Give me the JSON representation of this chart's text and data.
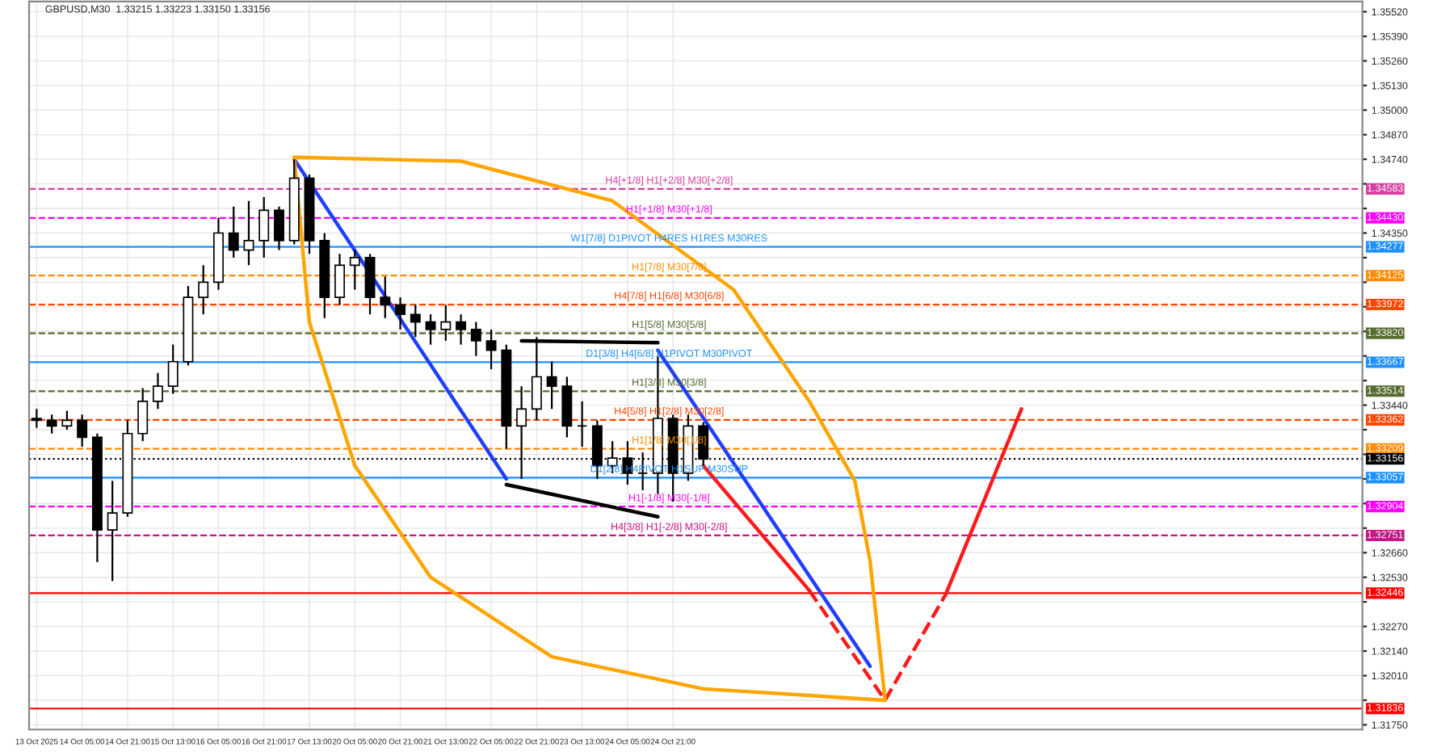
{
  "chart_data": {
    "type": "candlestick",
    "title": "GBPUSD,M30  1.33215 1.33223 1.33150 1.33156",
    "categories": [
      "13 Oct 2025",
      null,
      null,
      "14 Oct 05:00",
      null,
      null,
      "14 Oct 21:00",
      null,
      null,
      "15 Oct 13:00",
      null,
      null,
      "16 Oct 05:00",
      null,
      null,
      "16 Oct 21:00",
      null,
      null,
      "17 Oct 13:00",
      null,
      null,
      "20 Oct 05:00",
      null,
      null,
      "20 Oct 21:00",
      null,
      null,
      "21 Oct 13:00",
      null,
      null,
      "22 Oct 05:00",
      null,
      null,
      "22 Oct 21:00",
      null,
      null,
      "23 Oct 13:00",
      null,
      null,
      "24 Oct 05:00",
      null,
      null,
      "24 Oct 21:00",
      null,
      null,
      null,
      null,
      null,
      null,
      null,
      null,
      null,
      null,
      null,
      null,
      null,
      null,
      null,
      null,
      null,
      null,
      null,
      null,
      null,
      null,
      null,
      null,
      null,
      null,
      null,
      null,
      null,
      null,
      null,
      null,
      null,
      null,
      null,
      null,
      null,
      null,
      null,
      null,
      null,
      null,
      null,
      null,
      null
    ],
    "ohlc": [
      [
        1.3337,
        1.3342,
        1.3332,
        1.3336
      ],
      [
        1.3336,
        1.3339,
        1.3329,
        1.3333
      ],
      [
        1.3333,
        1.3341,
        1.3331,
        1.3336
      ],
      [
        1.3336,
        1.3339,
        1.3322,
        1.3327
      ],
      [
        1.3327,
        1.3329,
        1.3261,
        1.3278
      ],
      [
        1.3278,
        1.3304,
        1.3251,
        1.3287
      ],
      [
        1.3287,
        1.3336,
        1.3285,
        1.3329
      ],
      [
        1.3329,
        1.3353,
        1.3325,
        1.3346
      ],
      [
        1.3346,
        1.3361,
        1.3342,
        1.3354
      ],
      [
        1.3354,
        1.3376,
        1.335,
        1.3367
      ],
      [
        1.3367,
        1.3407,
        1.3365,
        1.3401
      ],
      [
        1.3401,
        1.3418,
        1.3392,
        1.3409
      ],
      [
        1.3409,
        1.3443,
        1.3405,
        1.3435
      ],
      [
        1.3435,
        1.3449,
        1.3422,
        1.3426
      ],
      [
        1.3426,
        1.3452,
        1.3418,
        1.3431
      ],
      [
        1.3431,
        1.3454,
        1.3422,
        1.3447
      ],
      [
        1.3447,
        1.3449,
        1.3426,
        1.3431
      ],
      [
        1.3431,
        1.3474,
        1.3429,
        1.3464
      ],
      [
        1.3464,
        1.3466,
        1.3424,
        1.3431
      ],
      [
        1.3431,
        1.3435,
        1.339,
        1.3401
      ],
      [
        1.3401,
        1.3424,
        1.3397,
        1.3418
      ],
      [
        1.3418,
        1.3426,
        1.3405,
        1.3422
      ],
      [
        1.3422,
        1.3424,
        1.3392,
        1.3401
      ],
      [
        1.3401,
        1.3412,
        1.339,
        1.3397
      ],
      [
        1.3397,
        1.3401,
        1.3384,
        1.3392
      ],
      [
        1.3392,
        1.3397,
        1.338,
        1.3388
      ],
      [
        1.3388,
        1.3392,
        1.3376,
        1.3384
      ],
      [
        1.3384,
        1.3397,
        1.3378,
        1.3388
      ],
      [
        1.3388,
        1.3392,
        1.3376,
        1.3384
      ],
      [
        1.3384,
        1.3388,
        1.337,
        1.3378
      ],
      [
        1.3378,
        1.3384,
        1.3363,
        1.3373
      ],
      [
        1.3373,
        1.3376,
        1.3321,
        1.3333
      ],
      [
        1.3333,
        1.3354,
        1.3305,
        1.3342
      ],
      [
        1.3342,
        1.338,
        1.3336,
        1.3359
      ],
      [
        1.3359,
        1.3367,
        1.3342,
        1.3354
      ],
      [
        1.3354,
        1.3359,
        1.3327,
        1.3333
      ],
      [
        1.3333,
        1.3346,
        1.3322,
        1.3333
      ],
      [
        1.3333,
        1.3336,
        1.3305,
        1.3312
      ],
      [
        1.3312,
        1.3325,
        1.3308,
        1.3316
      ],
      [
        1.3316,
        1.3325,
        1.3302,
        1.3308
      ],
      [
        1.3308,
        1.3319,
        1.3299,
        1.3308
      ],
      [
        1.3308,
        1.337,
        1.3297,
        1.3337
      ],
      [
        1.3337,
        1.3339,
        1.3293,
        1.3308
      ],
      [
        1.3308,
        1.3339,
        1.3304,
        1.3333
      ],
      [
        1.3333,
        1.3335,
        1.3312,
        1.33156
      ],
      null,
      null,
      null,
      null,
      null,
      null,
      null,
      null,
      null,
      null,
      null,
      null,
      null,
      null,
      null,
      null,
      null,
      null,
      null,
      null,
      null,
      null,
      null,
      null,
      null,
      null,
      null,
      null,
      null,
      null,
      null,
      null,
      null,
      null,
      null,
      null,
      null,
      null,
      null,
      null,
      null,
      null,
      null
    ],
    "series": [
      {
        "type": "line",
        "color": "#1f3fff",
        "line_style": "solid",
        "values": [
          null,
          null,
          null,
          null,
          null,
          null,
          null,
          null,
          null,
          null,
          null,
          null,
          null,
          null,
          null,
          null,
          null,
          1.3474,
          null,
          null,
          null,
          null,
          null,
          null,
          null,
          null,
          null,
          null,
          null,
          null,
          null,
          1.3305,
          null,
          null,
          null,
          null,
          null,
          null,
          null,
          null,
          null,
          null,
          null,
          null,
          null,
          null,
          null,
          null,
          null,
          null,
          null,
          null,
          null,
          null,
          null,
          null,
          null,
          null,
          null,
          null,
          null,
          null,
          null,
          null,
          null,
          null,
          null,
          null,
          null,
          null,
          null,
          null,
          null,
          null,
          null,
          null,
          null,
          null,
          null,
          null,
          null,
          null,
          null,
          null,
          null,
          null,
          null,
          null
        ]
      },
      {
        "type": "line",
        "color": "#1f3fff",
        "line_style": "solid",
        "values": [
          null,
          null,
          null,
          null,
          null,
          null,
          null,
          null,
          null,
          null,
          null,
          null,
          null,
          null,
          null,
          null,
          null,
          null,
          null,
          null,
          null,
          null,
          null,
          null,
          null,
          null,
          null,
          null,
          null,
          null,
          null,
          null,
          null,
          null,
          null,
          null,
          null,
          null,
          null,
          null,
          null,
          1.3373,
          null,
          null,
          null,
          null,
          null,
          null,
          null,
          null,
          null,
          null,
          null,
          null,
          null,
          1.3206,
          null,
          null,
          null,
          null,
          null,
          null,
          null,
          null,
          null,
          null,
          null,
          null,
          null,
          null,
          null,
          null,
          null,
          null,
          null,
          null,
          null,
          null,
          null,
          null,
          null,
          null,
          null,
          null,
          null,
          null,
          null,
          null
        ]
      },
      {
        "type": "line",
        "color": "#000000",
        "line_style": "solid",
        "values": [
          null,
          null,
          null,
          null,
          null,
          null,
          null,
          null,
          null,
          null,
          null,
          null,
          null,
          null,
          null,
          null,
          null,
          null,
          null,
          null,
          null,
          null,
          null,
          null,
          null,
          null,
          null,
          null,
          null,
          null,
          null,
          null,
          1.3378,
          null,
          null,
          null,
          null,
          null,
          null,
          null,
          null,
          1.3377,
          null,
          null,
          null,
          null,
          null,
          null,
          null,
          null,
          null,
          null,
          null,
          null,
          null,
          null,
          null,
          null,
          null,
          null,
          null,
          null,
          null,
          null,
          null,
          null,
          null,
          null,
          null,
          null,
          null,
          null,
          null,
          null,
          null,
          null,
          null,
          null,
          null,
          null,
          null,
          null,
          null,
          null,
          null,
          null,
          null,
          null
        ]
      },
      {
        "type": "line",
        "color": "#000000",
        "line_style": "solid",
        "values": [
          null,
          null,
          null,
          null,
          null,
          null,
          null,
          null,
          null,
          null,
          null,
          null,
          null,
          null,
          null,
          null,
          null,
          null,
          null,
          null,
          null,
          null,
          null,
          null,
          null,
          null,
          null,
          null,
          null,
          null,
          null,
          1.3302,
          null,
          null,
          null,
          null,
          null,
          null,
          null,
          null,
          null,
          1.3285,
          null,
          null,
          null,
          null,
          null,
          null,
          null,
          null,
          null,
          null,
          null,
          null,
          null,
          null,
          null,
          null,
          null,
          null,
          null,
          null,
          null,
          null,
          null,
          null,
          null,
          null,
          null,
          null,
          null,
          null,
          null,
          null,
          null,
          null,
          null,
          null,
          null,
          null,
          null,
          null,
          null,
          null,
          null,
          null,
          null,
          null
        ]
      },
      {
        "type": "line",
        "color": "#ff1a1a",
        "line_style": "solid",
        "values": [
          null,
          null,
          null,
          null,
          null,
          null,
          null,
          null,
          null,
          null,
          null,
          null,
          null,
          null,
          null,
          null,
          null,
          null,
          null,
          null,
          null,
          null,
          null,
          null,
          null,
          null,
          null,
          null,
          null,
          null,
          null,
          null,
          null,
          null,
          null,
          null,
          null,
          null,
          null,
          null,
          null,
          null,
          null,
          null,
          1.3312,
          null,
          null,
          null,
          null,
          null,
          null,
          1.3246,
          null,
          null,
          null,
          null,
          null,
          null,
          null,
          null,
          null,
          null,
          null,
          null,
          null,
          null,
          null,
          null,
          null,
          null,
          null,
          null,
          null,
          null,
          null,
          null,
          null,
          null,
          null,
          null,
          null,
          null,
          null,
          null,
          null,
          null,
          null,
          null
        ]
      },
      {
        "type": "line",
        "color": "#ff1a1a",
        "line_style": "dashed",
        "values": [
          null,
          null,
          null,
          null,
          null,
          null,
          null,
          null,
          null,
          null,
          null,
          null,
          null,
          null,
          null,
          null,
          null,
          null,
          null,
          null,
          null,
          null,
          null,
          null,
          null,
          null,
          null,
          null,
          null,
          null,
          null,
          null,
          null,
          null,
          null,
          null,
          null,
          null,
          null,
          null,
          null,
          null,
          null,
          null,
          null,
          null,
          null,
          null,
          null,
          null,
          null,
          1.3246,
          null,
          null,
          null,
          null,
          1.3188,
          null,
          null,
          null,
          null,
          null,
          null,
          null,
          null,
          null,
          null,
          null,
          null,
          null,
          null,
          null,
          null,
          null,
          null,
          null,
          null,
          null,
          null,
          null,
          null,
          null,
          null,
          null,
          null,
          null,
          null,
          null
        ]
      },
      {
        "type": "line",
        "color": "#ff1a1a",
        "line_style": "dashed",
        "values": [
          null,
          null,
          null,
          null,
          null,
          null,
          null,
          null,
          null,
          null,
          null,
          null,
          null,
          null,
          null,
          null,
          null,
          null,
          null,
          null,
          null,
          null,
          null,
          null,
          null,
          null,
          null,
          null,
          null,
          null,
          null,
          null,
          null,
          null,
          null,
          null,
          null,
          null,
          null,
          null,
          null,
          null,
          null,
          null,
          null,
          null,
          null,
          null,
          null,
          null,
          null,
          null,
          null,
          null,
          null,
          null,
          1.3188,
          null,
          null,
          null,
          1.3244,
          null,
          null,
          null,
          null,
          null,
          null,
          null,
          null,
          null,
          null,
          null,
          null,
          null,
          null,
          null,
          null,
          null,
          null,
          null,
          null,
          null,
          null,
          null,
          null,
          null,
          null,
          null
        ]
      },
      {
        "type": "line",
        "color": "#ff1a1a",
        "line_style": "solid",
        "values": [
          null,
          null,
          null,
          null,
          null,
          null,
          null,
          null,
          null,
          null,
          null,
          null,
          null,
          null,
          null,
          null,
          null,
          null,
          null,
          null,
          null,
          null,
          null,
          null,
          null,
          null,
          null,
          null,
          null,
          null,
          null,
          null,
          null,
          null,
          null,
          null,
          null,
          null,
          null,
          null,
          null,
          null,
          null,
          null,
          null,
          null,
          null,
          null,
          null,
          null,
          null,
          null,
          null,
          null,
          null,
          null,
          null,
          null,
          null,
          null,
          1.3244,
          null,
          null,
          null,
          null,
          1.3342,
          null,
          null,
          null,
          null,
          null,
          null,
          null,
          null,
          null,
          null,
          null,
          null,
          null,
          null,
          null,
          null,
          null,
          null,
          null,
          null,
          null,
          null
        ]
      },
      {
        "type": "line",
        "color": "#ffa500",
        "line_style": "solid",
        "values": [
          null,
          null,
          null,
          null,
          null,
          null,
          null,
          null,
          null,
          null,
          null,
          null,
          null,
          null,
          null,
          null,
          null,
          1.3475,
          null,
          null,
          null,
          null,
          null,
          null,
          null,
          null,
          null,
          null,
          1.3473,
          null,
          null,
          null,
          null,
          null,
          null,
          null,
          null,
          null,
          1.3452,
          null,
          null,
          null,
          null,
          null,
          null,
          null,
          1.3405,
          null,
          null,
          null,
          null,
          1.3346,
          null,
          null,
          1.3304,
          1.3262,
          1.3188,
          null,
          null,
          null,
          null,
          null,
          null,
          null,
          null,
          null,
          null,
          null,
          null,
          null,
          null,
          null,
          null,
          null,
          null,
          null,
          null,
          null,
          null,
          null,
          null,
          null,
          null,
          null,
          null,
          null,
          null,
          null
        ]
      },
      {
        "type": "line",
        "color": "#ffa500",
        "line_style": "solid",
        "values": [
          null,
          null,
          null,
          null,
          null,
          null,
          null,
          null,
          null,
          null,
          null,
          null,
          null,
          null,
          null,
          null,
          null,
          1.3475,
          1.3388,
          null,
          null,
          1.3312,
          null,
          null,
          null,
          null,
          1.3253,
          null,
          null,
          null,
          null,
          null,
          null,
          null,
          1.3211,
          null,
          null,
          null,
          null,
          null,
          null,
          null,
          null,
          null,
          1.3194,
          null,
          null,
          null,
          null,
          null,
          null,
          null,
          null,
          null,
          null,
          null,
          1.3188,
          null,
          null,
          null,
          null,
          null,
          null,
          null,
          null,
          null,
          null,
          null,
          null,
          null,
          null,
          null,
          null,
          null,
          null,
          null,
          null,
          null,
          null,
          null,
          null,
          null,
          null,
          null,
          null,
          null,
          null,
          null
        ]
      }
    ],
    "ref_lines": [
      {
        "axis": "y",
        "value": 1.34583,
        "label": "1.34583",
        "color": "#d63fa0",
        "line_style": "dashed"
      },
      {
        "axis": "y",
        "value": 1.3443,
        "label": "1.34430",
        "color": "#ff00ff",
        "line_style": "dashed"
      },
      {
        "axis": "y",
        "value": 1.34277,
        "label": "1.34277",
        "color": "#1e90ff",
        "line_style": "solid"
      },
      {
        "axis": "y",
        "value": 1.34125,
        "label": "1.34125",
        "color": "#ff8c00",
        "line_style": "dashed"
      },
      {
        "axis": "y",
        "value": 1.33972,
        "label": "1.33972",
        "color": "#ff4500",
        "line_style": "dashed"
      },
      {
        "axis": "y",
        "value": 1.3382,
        "label": "1.33820",
        "color": "#556b2f",
        "line_style": "dashed"
      },
      {
        "axis": "y",
        "value": 1.33667,
        "label": "1.33667",
        "color": "#1e90ff",
        "line_style": "solid"
      },
      {
        "axis": "y",
        "value": 1.33514,
        "label": "1.33514",
        "color": "#556b2f",
        "line_style": "dashed"
      },
      {
        "axis": "y",
        "value": 1.33362,
        "label": "1.33362",
        "color": "#ff4500",
        "line_style": "dashed"
      },
      {
        "axis": "y",
        "value": 1.33209,
        "label": "1.33209",
        "color": "#ff8c00",
        "line_style": "dashed"
      },
      {
        "axis": "y",
        "value": 1.33156,
        "label": "1.33156",
        "color": "#000000",
        "line_style": "dotted"
      },
      {
        "axis": "y",
        "value": 1.33057,
        "label": "1.33057",
        "color": "#1e90ff",
        "line_style": "solid"
      },
      {
        "axis": "y",
        "value": 1.32904,
        "label": "1.32904",
        "color": "#ff00ff",
        "line_style": "dashed"
      },
      {
        "axis": "y",
        "value": 1.32751,
        "label": "1.32751",
        "color": "#c71585",
        "line_style": "dashed"
      },
      {
        "axis": "y",
        "value": 1.32446,
        "label": "1.32446",
        "color": "#ff0000",
        "line_style": "solid"
      },
      {
        "axis": "y",
        "value": 1.31836,
        "label": "1.31836",
        "color": "#ff0000",
        "line_style": "solid"
      }
    ],
    "annotations": [
      {
        "text": "H4[+1/8] H1[+2/8] M30[+2/8]",
        "y": 1.34583
      },
      {
        "text": "H1[+1/8] M30[+1/8]",
        "y": 1.3443
      },
      {
        "text": "W1[7/8] D1PIVOT H4RES H1RES M30RES",
        "y": 1.34277
      },
      {
        "text": "H1[7/8] M30[7/8]",
        "y": 1.34125
      },
      {
        "text": "H4[7/8] H1[6/8] M30[6/8]",
        "y": 1.33972
      },
      {
        "text": "H1[5/8] M30[5/8]",
        "y": 1.3382
      },
      {
        "text": "D1[3/8] H4[6/8] H1PIVOT M30PIVOT",
        "y": 1.33667
      },
      {
        "text": "H1[3/8] M30[3/8]",
        "y": 1.33514
      },
      {
        "text": "H4[5/8] H1[2/8] M30[2/8]",
        "y": 1.33362
      },
      {
        "text": "H1[1/8] M30[1/8]",
        "y": 1.33209
      },
      {
        "text": "D1[2/8] H4PIVOT H1SUP M30SUP",
        "y": 1.33057
      },
      {
        "text": "H1[-1/8] M30[-1/8]",
        "y": 1.32904
      },
      {
        "text": "H4[3/8] H1[-2/8] M30[-2/8]",
        "y": 1.32751
      }
    ],
    "ylim": [
      1.31725,
      1.35574
    ],
    "yticks": [
      {
        "value": 1.3175,
        "label": "1.31750"
      },
      {
        "value": 1.3188,
        "label": null
      },
      {
        "value": 1.3201,
        "label": "1.32010"
      },
      {
        "value": 1.3214,
        "label": "1.32140"
      },
      {
        "value": 1.3227,
        "label": "1.32270"
      },
      {
        "value": 1.324,
        "label": null
      },
      {
        "value": 1.3253,
        "label": "1.32530"
      },
      {
        "value": 1.3266,
        "label": "1.32660"
      },
      {
        "value": 1.3279,
        "label": null
      },
      {
        "value": 1.3292,
        "label": null
      },
      {
        "value": 1.3305,
        "label": null
      },
      {
        "value": 1.3318,
        "label": null
      },
      {
        "value": 1.3331,
        "label": null
      },
      {
        "value": 1.3344,
        "label": "1.33440"
      },
      {
        "value": 1.3357,
        "label": null
      },
      {
        "value": 1.337,
        "label": null
      },
      {
        "value": 1.3383,
        "label": null
      },
      {
        "value": 1.3396,
        "label": null
      },
      {
        "value": 1.3409,
        "label": null
      },
      {
        "value": 1.3422,
        "label": null
      },
      {
        "value": 1.3435,
        "label": "1.34350"
      },
      {
        "value": 1.3448,
        "label": null
      },
      {
        "value": 1.3461,
        "label": null
      },
      {
        "value": 1.3474,
        "label": "1.34740"
      },
      {
        "value": 1.3487,
        "label": "1.34870"
      },
      {
        "value": 1.35,
        "label": "1.35000"
      },
      {
        "value": 1.3513,
        "label": "1.35130"
      },
      {
        "value": 1.3526,
        "label": "1.35260"
      },
      {
        "value": 1.3539,
        "label": "1.35390"
      },
      {
        "value": 1.3552,
        "label": "1.35520"
      }
    ],
    "grid": true
  }
}
